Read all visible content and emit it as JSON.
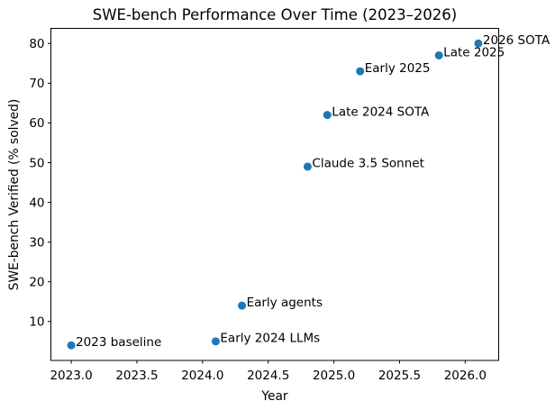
{
  "chart_data": {
    "type": "scatter",
    "title": "SWE-bench Performance Over Time (2023–2026)",
    "xlabel": "Year",
    "ylabel": "SWE-bench Verified (% solved)",
    "xlim": [
      2022.845,
      2026.255
    ],
    "ylim": [
      0.2,
      83.8
    ],
    "grid": false,
    "legend": "none",
    "marker_color": "#1f77b4",
    "background_color": "#ffffff",
    "x_ticks": [
      2023.0,
      2023.5,
      2024.0,
      2024.5,
      2025.0,
      2025.5,
      2026.0
    ],
    "x_tick_labels": [
      "2023.0",
      "2023.5",
      "2024.0",
      "2024.5",
      "2025.0",
      "2025.5",
      "2026.0"
    ],
    "y_ticks": [
      10,
      20,
      30,
      40,
      50,
      60,
      70,
      80
    ],
    "y_tick_labels": [
      "10",
      "20",
      "30",
      "40",
      "50",
      "60",
      "70",
      "80"
    ],
    "points": [
      {
        "x": 2023.0,
        "y": 4,
        "label": "2023 baseline"
      },
      {
        "x": 2024.1,
        "y": 5,
        "label": "Early 2024 LLMs"
      },
      {
        "x": 2024.3,
        "y": 14,
        "label": "Early agents"
      },
      {
        "x": 2024.8,
        "y": 49,
        "label": "Claude 3.5 Sonnet"
      },
      {
        "x": 2024.95,
        "y": 62,
        "label": "Late 2024 SOTA"
      },
      {
        "x": 2025.2,
        "y": 73,
        "label": "Early 2025"
      },
      {
        "x": 2025.8,
        "y": 77,
        "label": "Late 2025"
      },
      {
        "x": 2026.1,
        "y": 80,
        "label": "2026 SOTA"
      }
    ]
  }
}
